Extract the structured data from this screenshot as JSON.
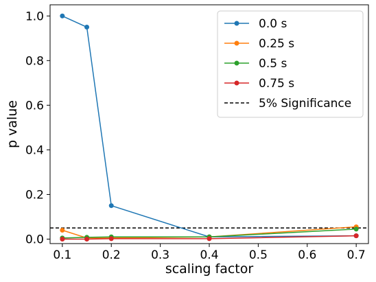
{
  "chart_data": {
    "type": "line",
    "xlabel": "scaling factor",
    "ylabel": "p value",
    "xlim": [
      0.075,
      0.725
    ],
    "ylim": [
      -0.02,
      1.05
    ],
    "xticks": [
      0.1,
      0.2,
      0.3,
      0.4,
      0.5,
      0.6,
      0.7
    ],
    "xtick_labels": [
      "0.1",
      "0.2",
      "0.3",
      "0.4",
      "0.5",
      "0.6",
      "0.7"
    ],
    "yticks": [
      0.0,
      0.2,
      0.4,
      0.6,
      0.8,
      1.0
    ],
    "ytick_labels": [
      "0.0",
      "0.2",
      "0.4",
      "0.6",
      "0.8",
      "1.0"
    ],
    "x": [
      0.1,
      0.15,
      0.2,
      0.4,
      0.7
    ],
    "series": [
      {
        "name": "0.0 s",
        "color": "#1f77b4",
        "values": [
          1.0,
          0.95,
          0.15,
          0.01,
          0.015
        ]
      },
      {
        "name": "0.25 s",
        "color": "#ff7f0e",
        "values": [
          0.04,
          0.005,
          0.005,
          0.01,
          0.055
        ]
      },
      {
        "name": "0.5 s",
        "color": "#2ca02c",
        "values": [
          0.005,
          0.008,
          0.01,
          0.01,
          0.045
        ]
      },
      {
        "name": "0.75 s",
        "color": "#d62728",
        "values": [
          0.0,
          0.0,
          0.002,
          0.002,
          0.015
        ]
      }
    ],
    "reference_line": {
      "name": "5% Significance",
      "y": 0.05,
      "style": "dashed",
      "color": "#000000"
    },
    "legend_position": "top-right",
    "grid": false
  }
}
